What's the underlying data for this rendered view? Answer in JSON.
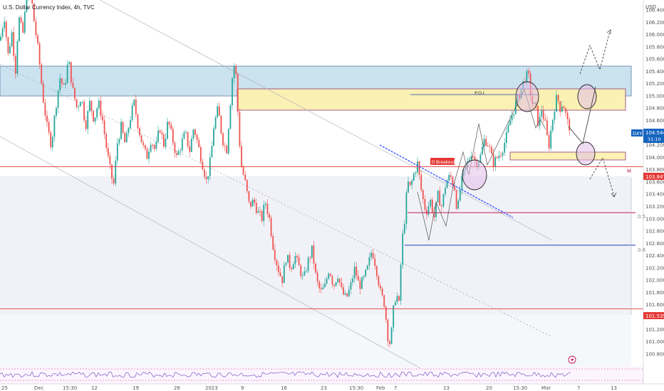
{
  "header": {
    "title": "U.S. Dollar Currency Index, 4h, TVC"
  },
  "price_axis": {
    "currency": "USD",
    "ticks": [
      "106.400",
      "106.200",
      "106.000",
      "105.800",
      "105.600",
      "105.400",
      "105.200",
      "105.000",
      "104.800",
      "104.600",
      "104.400",
      "104.200",
      "104.000",
      "103.800",
      "103.600",
      "103.400",
      "103.200",
      "103.000",
      "102.800",
      "102.600",
      "102.400",
      "102.200",
      "102.000",
      "101.800",
      "101.600",
      "101.400",
      "101.200",
      "101.000",
      "100.800"
    ],
    "symbol_badge": "DXY",
    "last_price": "104.544",
    "countdown": "31:10",
    "level_badges": [
      {
        "value": "103.847",
        "color": "#e53935"
      },
      {
        "value": "101.535",
        "color": "#e53935"
      }
    ]
  },
  "time_axis": {
    "labels": [
      "25",
      "Dec",
      "15:30",
      "12",
      "19",
      "26",
      "2023",
      "9",
      "16",
      "23",
      "15:30",
      "Feb",
      "7",
      "13",
      "20",
      "15:30",
      "Mar",
      "7",
      "13"
    ]
  },
  "annotations": {
    "poi_label": "P.O.I",
    "breakout_label": "tl Breakout",
    "fib_05": "0.5",
    "fib_06": "0.6",
    "m_label": "M"
  },
  "colors": {
    "up": "#26a69a",
    "down": "#ef5350",
    "supply_zone": "#b3d4e8",
    "poi_zone": "#fdf2b8",
    "demand_lower": "#eef0f7",
    "level_line": "#e53935",
    "trendline_blue": "#3d5afe",
    "fib_05_line": "#c2185b",
    "fib_06_line": "#1a3fb5"
  },
  "chart_data": {
    "type": "candlestick",
    "title": "U.S. Dollar Currency Index, 4h, TVC",
    "interval": "4h",
    "ylim": [
      100.7,
      106.55
    ],
    "key_levels": [
      {
        "name": "resistance",
        "price": 103.847
      },
      {
        "name": "support",
        "price": 101.535
      },
      {
        "name": "0.5",
        "price": 103.1
      },
      {
        "name": "0.6",
        "price": 102.57
      }
    ],
    "zones": [
      {
        "name": "supply",
        "from": 105.2,
        "to": 105.63
      },
      {
        "name": "poi",
        "from": 104.95,
        "to": 105.28
      },
      {
        "name": "demand",
        "from": 104.07,
        "to": 104.17
      }
    ],
    "price_path": [
      [
        0,
        105.9
      ],
      [
        6,
        106.3
      ],
      [
        12,
        105.6
      ],
      [
        16,
        106.1
      ],
      [
        22,
        105.4
      ],
      [
        26,
        106.3
      ],
      [
        32,
        106.0
      ],
      [
        38,
        106.7
      ],
      [
        44,
        106.6
      ],
      [
        48,
        106.2
      ],
      [
        54,
        105.7
      ],
      [
        60,
        105.0
      ],
      [
        66,
        104.5
      ],
      [
        72,
        104.2
      ],
      [
        78,
        104.8
      ],
      [
        84,
        105.3
      ],
      [
        90,
        105.1
      ],
      [
        96,
        105.6
      ],
      [
        102,
        105.1
      ],
      [
        108,
        104.8
      ],
      [
        114,
        105.0
      ],
      [
        120,
        104.5
      ],
      [
        126,
        104.9
      ],
      [
        132,
        104.6
      ],
      [
        138,
        104.9
      ],
      [
        144,
        104.6
      ],
      [
        150,
        104.1
      ],
      [
        156,
        103.7
      ],
      [
        160,
        103.55
      ],
      [
        164,
        104.2
      ],
      [
        170,
        104.5
      ],
      [
        176,
        104.2
      ],
      [
        182,
        104.6
      ],
      [
        188,
        104.9
      ],
      [
        194,
        104.5
      ],
      [
        200,
        104.2
      ],
      [
        206,
        104.0
      ],
      [
        212,
        104.3
      ],
      [
        218,
        104.1
      ],
      [
        224,
        104.5
      ],
      [
        230,
        104.2
      ],
      [
        236,
        104.6
      ],
      [
        242,
        104.3
      ],
      [
        248,
        104.0
      ],
      [
        254,
        104.2
      ],
      [
        260,
        104.4
      ],
      [
        266,
        104.1
      ],
      [
        272,
        104.5
      ],
      [
        278,
        104.2
      ],
      [
        284,
        103.9
      ],
      [
        290,
        103.6
      ],
      [
        296,
        104.0
      ],
      [
        300,
        104.5
      ],
      [
        306,
        104.8
      ],
      [
        312,
        104.3
      ],
      [
        318,
        104.1
      ],
      [
        322,
        104.7
      ],
      [
        326,
        105.3
      ],
      [
        330,
        105.6
      ],
      [
        334,
        104.7
      ],
      [
        338,
        103.9
      ],
      [
        344,
        103.6
      ],
      [
        350,
        103.2
      ],
      [
        356,
        103.3
      ],
      [
        362,
        103.1
      ],
      [
        368,
        103.0
      ],
      [
        372,
        103.3
      ],
      [
        378,
        103.0
      ],
      [
        384,
        102.5
      ],
      [
        390,
        102.2
      ],
      [
        396,
        102.0
      ],
      [
        402,
        102.4
      ],
      [
        408,
        102.2
      ],
      [
        414,
        102.4
      ],
      [
        420,
        102.2
      ],
      [
        426,
        102.0
      ],
      [
        432,
        102.3
      ],
      [
        438,
        102.5
      ],
      [
        444,
        102.0
      ],
      [
        450,
        101.8
      ],
      [
        456,
        101.9
      ],
      [
        462,
        102.2
      ],
      [
        468,
        101.9
      ],
      [
        474,
        102.1
      ],
      [
        480,
        101.8
      ],
      [
        486,
        101.7
      ],
      [
        492,
        101.9
      ],
      [
        498,
        102.2
      ],
      [
        504,
        101.9
      ],
      [
        510,
        102.0
      ],
      [
        516,
        102.2
      ],
      [
        522,
        102.5
      ],
      [
        528,
        102.2
      ],
      [
        534,
        101.8
      ],
      [
        540,
        101.6
      ],
      [
        544,
        101.1
      ],
      [
        548,
        100.95
      ],
      [
        552,
        101.5
      ],
      [
        556,
        101.8
      ],
      [
        560,
        101.6
      ],
      [
        564,
        102.6
      ],
      [
        568,
        103.0
      ],
      [
        572,
        103.6
      ],
      [
        576,
        103.5
      ],
      [
        580,
        103.7
      ],
      [
        586,
        103.9
      ],
      [
        592,
        103.4
      ],
      [
        598,
        103.1
      ],
      [
        604,
        103.3
      ],
      [
        610,
        103.0
      ],
      [
        614,
        103.4
      ],
      [
        620,
        103.2
      ],
      [
        626,
        103.6
      ],
      [
        632,
        103.7
      ],
      [
        638,
        103.5
      ],
      [
        642,
        103.1
      ],
      [
        646,
        103.5
      ],
      [
        650,
        103.7
      ],
      [
        656,
        103.9
      ],
      [
        662,
        104.1
      ],
      [
        668,
        103.9
      ],
      [
        674,
        104.0
      ],
      [
        680,
        104.3
      ],
      [
        686,
        104.2
      ],
      [
        692,
        103.9
      ],
      [
        698,
        104.0
      ],
      [
        704,
        104.1
      ],
      [
        710,
        104.3
      ],
      [
        716,
        104.6
      ],
      [
        722,
        104.8
      ],
      [
        728,
        105.0
      ],
      [
        734,
        105.2
      ],
      [
        738,
        105.35
      ],
      [
        742,
        105.3
      ],
      [
        746,
        104.9
      ],
      [
        752,
        104.8
      ],
      [
        756,
        104.5
      ],
      [
        760,
        104.8
      ],
      [
        766,
        104.5
      ],
      [
        770,
        104.15
      ],
      [
        774,
        104.5
      ],
      [
        778,
        104.8
      ],
      [
        782,
        105.0
      ],
      [
        786,
        104.8
      ],
      [
        790,
        104.9
      ],
      [
        794,
        104.7
      ],
      [
        798,
        104.5
      ]
    ]
  }
}
